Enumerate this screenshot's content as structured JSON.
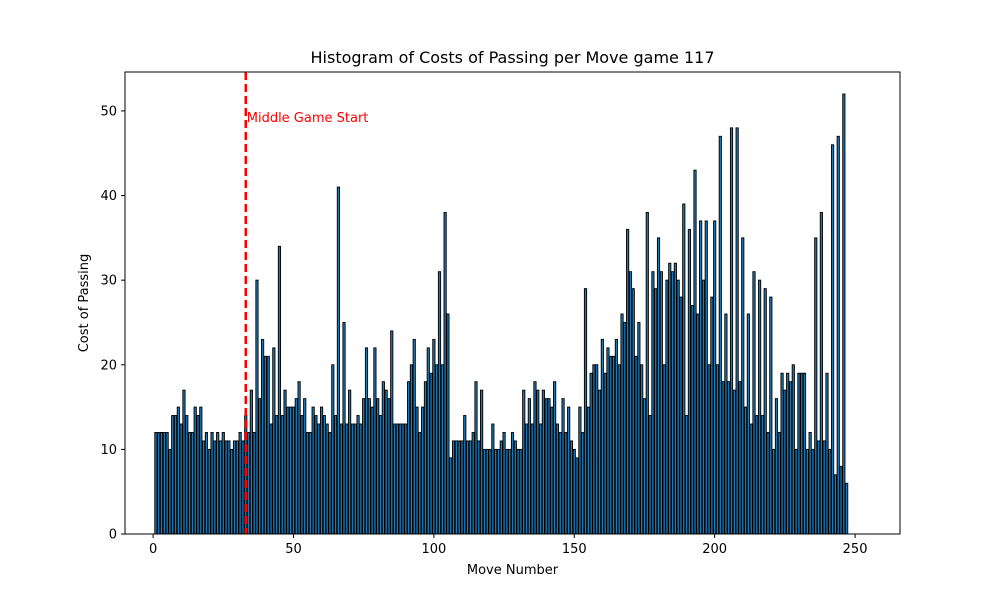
{
  "chart_data": {
    "type": "bar",
    "title": "Histogram of Costs of Passing per Move game 117",
    "xlabel": "Move Number",
    "ylabel": "Cost of Passing",
    "xlim": [
      -10,
      266
    ],
    "ylim": [
      0,
      54.6
    ],
    "xticks": [
      0,
      50,
      100,
      150,
      200,
      250
    ],
    "yticks": [
      0,
      10,
      20,
      30,
      40,
      50
    ],
    "grid": false,
    "bar_color": "#1f77b4",
    "edge_color": "#000000",
    "x_start": 1,
    "values": [
      12,
      12,
      12,
      12,
      12,
      10,
      14,
      14,
      15,
      13,
      17,
      14,
      12,
      12,
      15,
      14,
      15,
      11,
      12,
      10,
      12,
      11,
      12,
      11,
      12,
      11,
      11,
      10,
      11,
      11,
      12,
      11,
      14,
      12,
      17,
      12,
      30,
      16,
      23,
      21,
      21,
      13,
      22,
      14,
      34,
      14,
      17,
      15,
      15,
      15,
      16,
      18,
      14,
      16,
      12,
      12,
      15,
      14,
      13,
      15,
      14,
      13,
      12,
      20,
      14,
      41,
      13,
      25,
      13,
      17,
      13,
      13,
      14,
      13,
      16,
      22,
      16,
      15,
      22,
      16,
      14,
      18,
      17,
      16,
      24,
      13,
      13,
      13,
      13,
      13,
      18,
      20,
      23,
      15,
      12,
      15,
      18,
      22,
      19,
      23,
      20,
      31,
      20,
      38,
      26,
      9,
      11,
      11,
      11,
      11,
      14,
      11,
      11,
      12,
      18,
      11,
      17,
      10,
      10,
      10,
      13,
      10,
      10,
      11,
      12,
      10,
      10,
      12,
      11,
      10,
      10,
      17,
      13,
      16,
      13,
      18,
      17,
      13,
      17,
      16,
      16,
      15,
      18,
      13,
      12,
      16,
      12,
      15,
      11,
      10,
      9,
      15,
      12,
      29,
      15,
      19,
      20,
      20,
      17,
      23,
      19,
      22,
      21,
      21,
      23,
      20,
      26,
      25,
      36,
      31,
      29,
      21,
      25,
      20,
      16,
      38,
      14,
      31,
      29,
      35,
      31,
      20,
      30,
      32,
      31,
      32,
      30,
      28,
      39,
      14,
      36,
      27,
      43,
      26,
      37,
      30,
      37,
      20,
      28,
      37,
      20,
      47,
      18,
      26,
      18,
      48,
      17,
      48,
      18,
      35,
      15,
      26,
      13,
      31,
      14,
      30,
      14,
      29,
      12,
      28,
      10,
      16,
      12,
      19,
      17,
      19,
      18,
      20,
      10,
      19,
      19,
      19,
      10,
      12,
      10,
      35,
      11,
      38,
      11,
      19,
      10,
      46,
      7,
      47,
      8,
      52,
      6
    ],
    "vline": {
      "x": 33,
      "color": "#ff0000",
      "style": "dashed"
    },
    "annotation": {
      "text": "Middle Game Start",
      "x": 33,
      "y": 49.3,
      "color": "#ff0000"
    }
  }
}
